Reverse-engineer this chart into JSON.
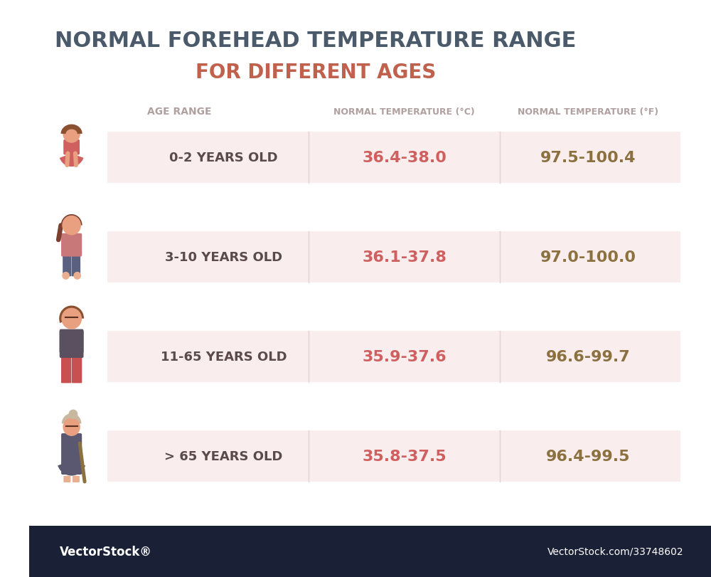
{
  "title_line1": "NORMAL FOREHEAD TEMPERATURE RANGE",
  "title_line2": "FOR DIFFERENT AGES",
  "title_color1": "#4a5a6b",
  "title_color2": "#c0614d",
  "header_age": "AGE RANGE",
  "header_celsius": "NORMAL TEMPERATURE (°C)",
  "header_fahrenheit": "NORMAL TEMPERATURE (°F)",
  "header_color": "#b0a0a0",
  "rows": [
    {
      "age": "0-2 YEARS OLD",
      "celsius": "36.4-38.0",
      "fahrenheit": "97.5-100.4"
    },
    {
      "age": "3-10 YEARS OLD",
      "celsius": "36.1-37.8",
      "fahrenheit": "97.0-100.0"
    },
    {
      "age": "11-65 YEARS OLD",
      "celsius": "35.9-37.6",
      "fahrenheit": "96.6-99.7"
    },
    {
      "age": "> 65 YEARS OLD",
      "celsius": "35.8-37.5",
      "fahrenheit": "96.4-99.5"
    }
  ],
  "row_bg_color": "#f9eded",
  "age_text_color": "#5a4a4a",
  "celsius_text_color": "#d06060",
  "fahrenheit_text_color": "#8b7040",
  "background_color": "#ffffff",
  "footer_color": "#1a2035",
  "footer_text_left": "VectorStock®",
  "footer_text_right": "VectorStock.com/33748602"
}
